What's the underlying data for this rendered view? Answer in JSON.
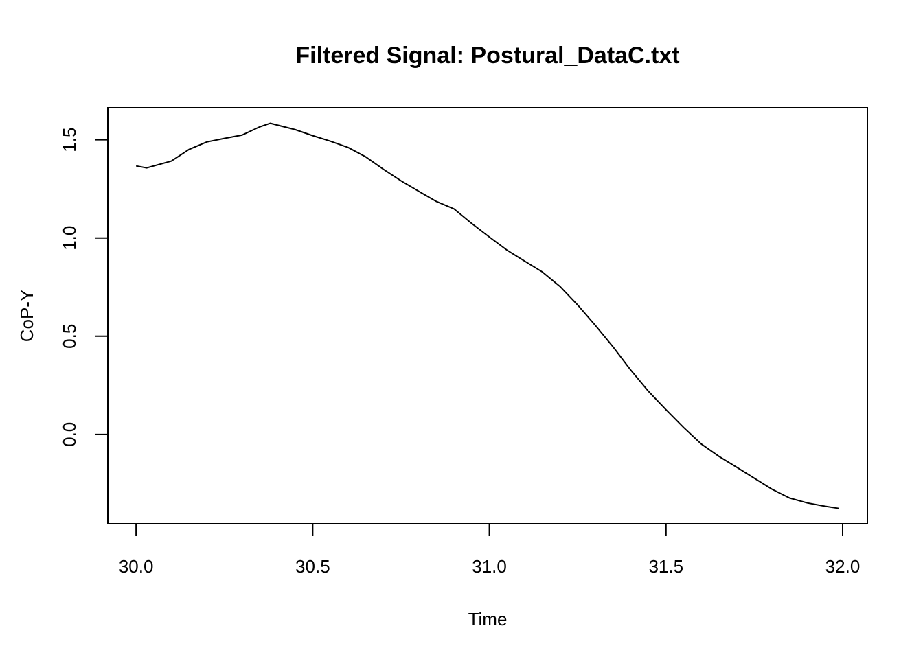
{
  "chart_data": {
    "type": "line",
    "title": "Filtered Signal: Postural_DataC.txt",
    "x_label": "Time",
    "y_label": "CoP-Y",
    "x": [
      30.0,
      30.03,
      30.1,
      30.15,
      30.2,
      30.25,
      30.3,
      30.35,
      30.38,
      30.45,
      30.5,
      30.55,
      30.6,
      30.65,
      30.7,
      30.75,
      30.8,
      30.85,
      30.9,
      30.95,
      31.0,
      31.05,
      31.1,
      31.15,
      31.2,
      31.25,
      31.3,
      31.35,
      31.4,
      31.45,
      31.5,
      31.55,
      31.6,
      31.65,
      31.7,
      31.75,
      31.8,
      31.85,
      31.9,
      31.95,
      31.99
    ],
    "series": [
      {
        "color": "#000000",
        "values": [
          1.367,
          1.357,
          1.392,
          1.451,
          1.489,
          1.507,
          1.524,
          1.566,
          1.584,
          1.552,
          1.521,
          1.493,
          1.461,
          1.413,
          1.35,
          1.291,
          1.238,
          1.186,
          1.148,
          1.074,
          1.005,
          0.938,
          0.882,
          0.827,
          0.753,
          0.659,
          0.555,
          0.446,
          0.328,
          0.22,
          0.126,
          0.035,
          -0.049,
          -0.112,
          -0.167,
          -0.223,
          -0.279,
          -0.324,
          -0.349,
          -0.366,
          -0.377
        ]
      }
    ],
    "xlim": [
      29.92,
      32.07
    ],
    "ylim": [
      -0.455,
      1.663
    ],
    "xticks": [
      {
        "value": 30,
        "label": "30.0"
      },
      30.5,
      {
        "value": 31,
        "label": "31.0"
      },
      31.5,
      {
        "value": 32,
        "label": "32.0"
      }
    ],
    "yticks": [
      {
        "value": 0,
        "label": "0.0"
      },
      0.5,
      {
        "value": 1,
        "label": "1.0"
      },
      1.5
    ]
  }
}
